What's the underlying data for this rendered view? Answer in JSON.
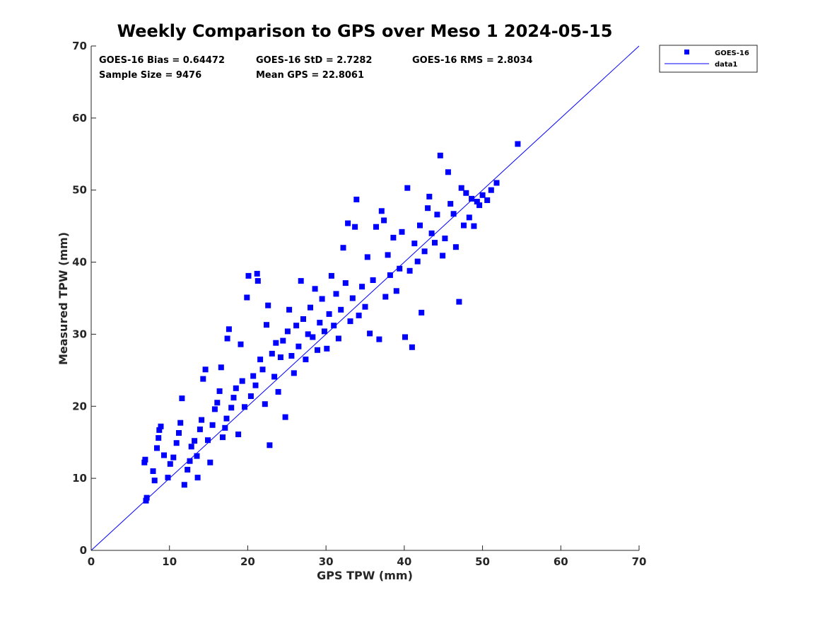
{
  "chart_data": {
    "type": "scatter",
    "title": "Weekly Comparison to GPS over Meso 1 2024-05-15",
    "xlabel": "GPS TPW (mm)",
    "ylabel": "Measured TPW (mm)",
    "xlim": [
      0,
      70
    ],
    "ylim": [
      0,
      70
    ],
    "xticks": [
      "0",
      "10",
      "20",
      "30",
      "40",
      "50",
      "60",
      "70"
    ],
    "yticks": [
      "0",
      "10",
      "20",
      "30",
      "40",
      "50",
      "60",
      "70"
    ],
    "legend_position": "outside-top-right",
    "stats": {
      "bias": "GOES-16 Bias = 0.64472",
      "std": "GOES-16 StD = 2.7282",
      "rms": "GOES-16 RMS = 2.8034",
      "sample_size": "Sample Size = 9476",
      "mean_gps": "Mean GPS = 22.8061"
    },
    "series": [
      {
        "name": "GOES-16",
        "kind": "scatter",
        "marker": "square",
        "color": "#0000ff",
        "points": [
          [
            7.0,
            6.9
          ],
          [
            7.1,
            7.3
          ],
          [
            6.8,
            12.2
          ],
          [
            6.9,
            12.6
          ],
          [
            7.9,
            11.0
          ],
          [
            8.1,
            9.7
          ],
          [
            8.4,
            14.2
          ],
          [
            8.6,
            15.6
          ],
          [
            8.7,
            16.7
          ],
          [
            8.9,
            17.2
          ],
          [
            9.3,
            13.2
          ],
          [
            9.8,
            10.1
          ],
          [
            10.1,
            12.0
          ],
          [
            10.5,
            12.9
          ],
          [
            10.9,
            14.9
          ],
          [
            11.2,
            16.3
          ],
          [
            11.4,
            17.7
          ],
          [
            11.6,
            21.1
          ],
          [
            11.9,
            9.1
          ],
          [
            12.3,
            11.2
          ],
          [
            12.6,
            12.4
          ],
          [
            12.8,
            14.4
          ],
          [
            13.2,
            15.2
          ],
          [
            13.5,
            13.1
          ],
          [
            13.6,
            10.1
          ],
          [
            13.9,
            16.8
          ],
          [
            14.1,
            18.1
          ],
          [
            14.3,
            23.8
          ],
          [
            14.6,
            25.1
          ],
          [
            14.9,
            15.3
          ],
          [
            15.2,
            12.2
          ],
          [
            15.5,
            17.4
          ],
          [
            15.8,
            19.6
          ],
          [
            16.1,
            20.5
          ],
          [
            16.4,
            22.1
          ],
          [
            16.6,
            25.4
          ],
          [
            16.8,
            15.7
          ],
          [
            17.1,
            17.0
          ],
          [
            17.3,
            18.3
          ],
          [
            17.4,
            29.4
          ],
          [
            17.6,
            30.7
          ],
          [
            17.9,
            19.8
          ],
          [
            18.2,
            21.2
          ],
          [
            18.5,
            22.5
          ],
          [
            18.8,
            16.1
          ],
          [
            19.1,
            28.6
          ],
          [
            19.3,
            23.5
          ],
          [
            19.6,
            19.9
          ],
          [
            19.9,
            35.1
          ],
          [
            20.1,
            38.1
          ],
          [
            20.4,
            21.4
          ],
          [
            20.7,
            24.2
          ],
          [
            21.0,
            22.9
          ],
          [
            21.2,
            38.4
          ],
          [
            21.3,
            37.4
          ],
          [
            21.6,
            26.5
          ],
          [
            21.9,
            25.1
          ],
          [
            22.2,
            20.3
          ],
          [
            22.4,
            31.3
          ],
          [
            22.6,
            34.0
          ],
          [
            22.8,
            14.6
          ],
          [
            23.1,
            27.3
          ],
          [
            23.4,
            24.1
          ],
          [
            23.6,
            28.8
          ],
          [
            23.9,
            22.0
          ],
          [
            24.2,
            26.8
          ],
          [
            24.5,
            29.1
          ],
          [
            24.8,
            18.5
          ],
          [
            25.1,
            30.4
          ],
          [
            25.3,
            33.4
          ],
          [
            25.6,
            27.0
          ],
          [
            25.9,
            24.6
          ],
          [
            26.2,
            31.2
          ],
          [
            26.5,
            28.3
          ],
          [
            26.8,
            37.4
          ],
          [
            27.1,
            32.1
          ],
          [
            27.4,
            26.5
          ],
          [
            27.7,
            30.0
          ],
          [
            28.0,
            33.7
          ],
          [
            28.3,
            29.6
          ],
          [
            28.6,
            36.3
          ],
          [
            28.9,
            27.8
          ],
          [
            29.2,
            31.6
          ],
          [
            29.5,
            34.9
          ],
          [
            29.8,
            30.4
          ],
          [
            30.1,
            28.0
          ],
          [
            30.4,
            32.8
          ],
          [
            30.7,
            38.1
          ],
          [
            31.0,
            31.2
          ],
          [
            31.3,
            35.6
          ],
          [
            31.6,
            29.4
          ],
          [
            31.9,
            33.4
          ],
          [
            32.2,
            42.0
          ],
          [
            32.5,
            37.1
          ],
          [
            32.8,
            45.4
          ],
          [
            33.1,
            31.8
          ],
          [
            33.4,
            35.0
          ],
          [
            33.7,
            44.9
          ],
          [
            33.9,
            48.7
          ],
          [
            34.2,
            32.6
          ],
          [
            34.6,
            36.6
          ],
          [
            35.0,
            33.8
          ],
          [
            35.3,
            40.7
          ],
          [
            35.6,
            30.1
          ],
          [
            36.0,
            37.5
          ],
          [
            36.4,
            44.9
          ],
          [
            36.8,
            29.3
          ],
          [
            37.1,
            47.1
          ],
          [
            37.4,
            45.8
          ],
          [
            37.6,
            35.2
          ],
          [
            37.9,
            41.0
          ],
          [
            38.2,
            38.2
          ],
          [
            38.6,
            43.4
          ],
          [
            39.0,
            36.0
          ],
          [
            39.4,
            39.1
          ],
          [
            39.7,
            44.2
          ],
          [
            40.1,
            29.6
          ],
          [
            40.4,
            50.3
          ],
          [
            40.7,
            38.8
          ],
          [
            41.0,
            28.2
          ],
          [
            41.3,
            42.6
          ],
          [
            41.7,
            40.1
          ],
          [
            42.0,
            45.1
          ],
          [
            42.2,
            33.0
          ],
          [
            42.6,
            41.5
          ],
          [
            43.0,
            47.5
          ],
          [
            43.2,
            49.1
          ],
          [
            43.5,
            44.0
          ],
          [
            43.9,
            42.7
          ],
          [
            44.2,
            46.6
          ],
          [
            44.6,
            54.8
          ],
          [
            44.9,
            40.9
          ],
          [
            45.2,
            43.3
          ],
          [
            45.6,
            52.5
          ],
          [
            45.9,
            48.1
          ],
          [
            46.3,
            46.7
          ],
          [
            46.6,
            42.1
          ],
          [
            47.0,
            34.5
          ],
          [
            47.3,
            50.3
          ],
          [
            47.6,
            45.1
          ],
          [
            47.9,
            49.6
          ],
          [
            48.3,
            46.2
          ],
          [
            48.6,
            48.8
          ],
          [
            48.9,
            45.0
          ],
          [
            49.3,
            48.4
          ],
          [
            49.6,
            47.9
          ],
          [
            50.0,
            49.3
          ],
          [
            50.6,
            48.6
          ],
          [
            51.1,
            50.0
          ],
          [
            51.8,
            51.0
          ],
          [
            54.5,
            56.4
          ]
        ]
      },
      {
        "name": "data1",
        "kind": "line",
        "color": "#0000ff",
        "x": [
          0,
          70
        ],
        "y": [
          0,
          70
        ]
      }
    ]
  }
}
